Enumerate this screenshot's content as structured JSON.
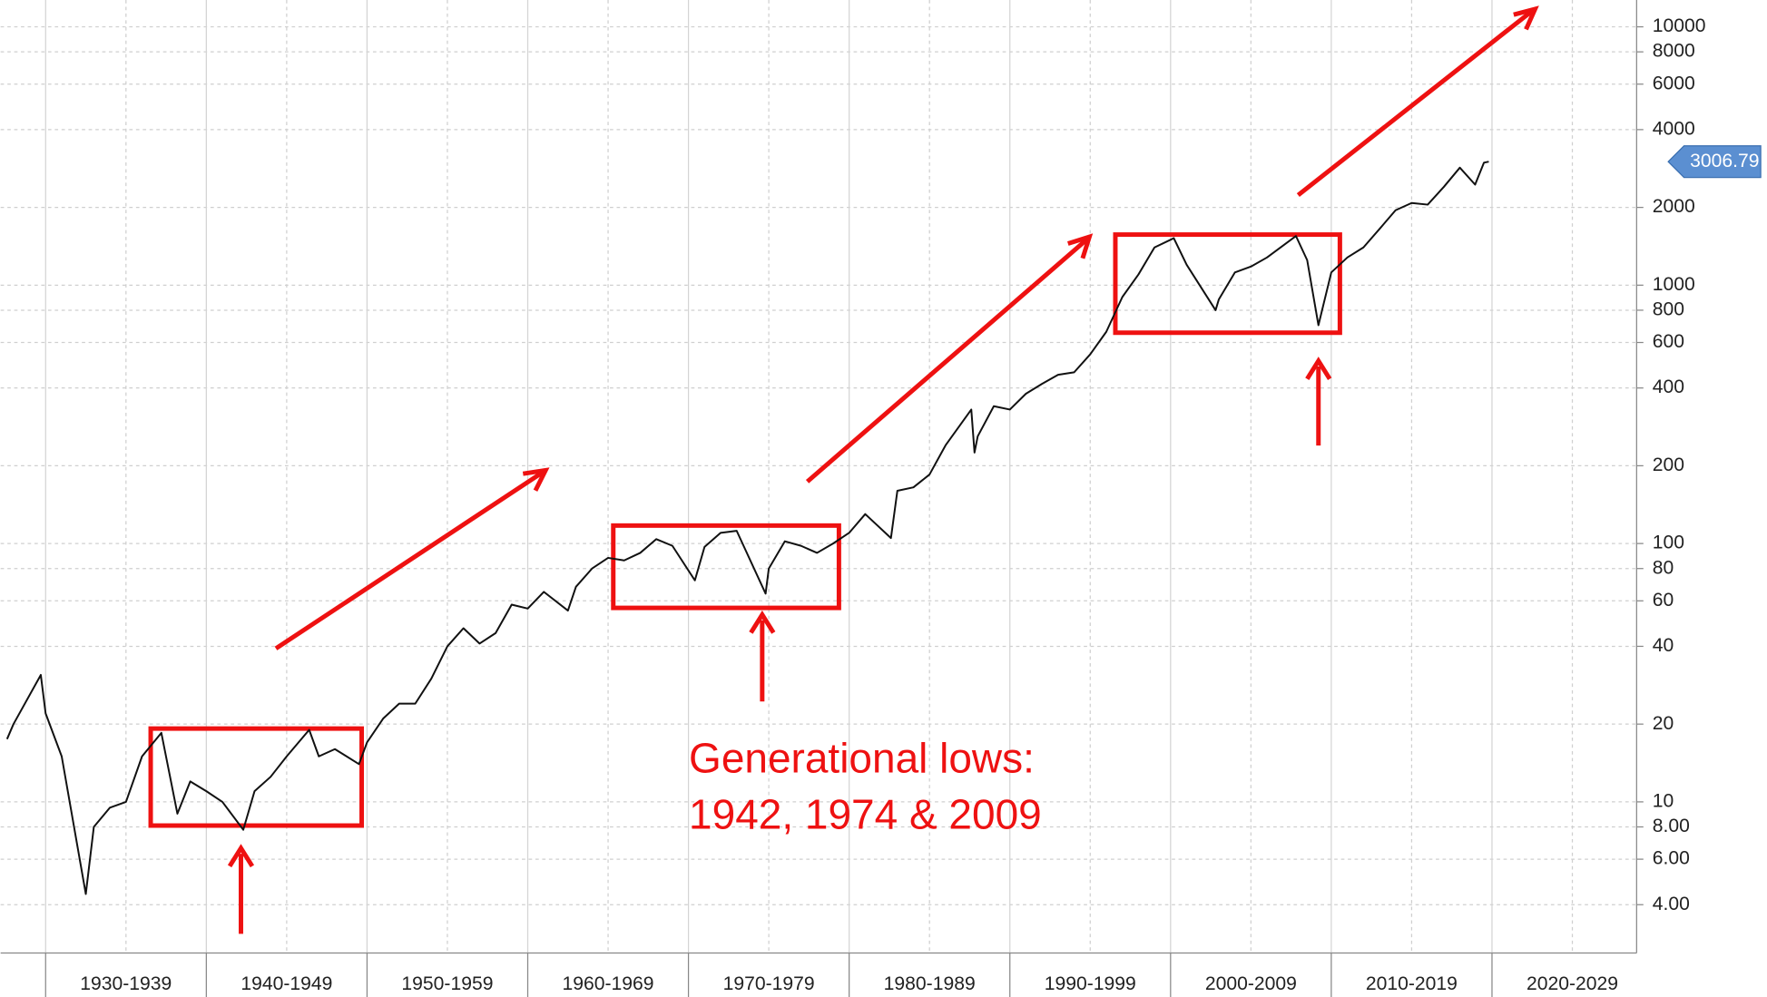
{
  "chart_data": {
    "type": "line",
    "log_y": true,
    "grid": true,
    "color": "#111111",
    "x": [
      1927.6,
      1928,
      1929.7,
      1930,
      1931,
      1932.5,
      1933,
      1934,
      1935,
      1936,
      1937.2,
      1938.2,
      1939,
      1940,
      1941,
      1942.3,
      1943,
      1944,
      1945,
      1946.4,
      1947,
      1948,
      1949.5,
      1950,
      1951,
      1952,
      1953,
      1954,
      1955,
      1956,
      1957,
      1958,
      1959,
      1960,
      1961,
      1962.5,
      1963,
      1964,
      1965,
      1966,
      1967,
      1968,
      1969,
      1970.4,
      1971,
      1972,
      1973,
      1974.8,
      1975,
      1976,
      1977,
      1978,
      1979,
      1980,
      1981,
      1982.6,
      1983,
      1984,
      1985,
      1986,
      1987.6,
      1987.8,
      1988,
      1989,
      1990,
      1991,
      1992,
      1993,
      1994,
      1995,
      1996,
      1997,
      1998,
      1999,
      2000.2,
      2001,
      2002.8,
      2003,
      2004,
      2005,
      2006,
      2007.8,
      2008.5,
      2009.2,
      2010,
      2011,
      2012,
      2013,
      2014,
      2015,
      2016,
      2017,
      2018,
      2018.95,
      2019.5,
      2019.8
    ],
    "values": [
      17.5,
      20,
      31,
      22,
      15,
      4.4,
      8,
      9.5,
      10,
      15,
      18.5,
      9,
      12,
      11,
      10,
      7.8,
      11,
      12.5,
      15,
      19,
      15,
      16,
      14,
      17,
      21,
      24,
      24,
      30,
      40,
      47,
      41,
      45,
      58,
      56,
      65,
      55,
      68,
      80,
      88,
      86,
      92,
      104,
      98,
      72,
      97,
      110,
      112,
      64,
      80,
      102,
      98,
      92,
      100,
      110,
      130,
      105,
      160,
      165,
      185,
      240,
      330,
      225,
      260,
      340,
      330,
      380,
      415,
      450,
      460,
      540,
      660,
      900,
      1100,
      1400,
      1520,
      1200,
      800,
      880,
      1120,
      1180,
      1280,
      1550,
      1250,
      700,
      1120,
      1280,
      1400,
      1650,
      1950,
      2080,
      2050,
      2400,
      2850,
      2450,
      2980,
      3006.79
    ],
    "current_value": 3006.79,
    "xlim": [
      1927.2,
      2029
    ],
    "xgrid": [
      1930,
      1940,
      1950,
      1960,
      1970,
      1980,
      1990,
      2000,
      2010,
      2020
    ],
    "xticks": [
      {
        "value": 1935,
        "label": "1930-1939"
      },
      {
        "value": 1945,
        "label": "1940-1949"
      },
      {
        "value": 1955,
        "label": "1950-1959"
      },
      {
        "value": 1965,
        "label": "1960-1969"
      },
      {
        "value": 1975,
        "label": "1970-1979"
      },
      {
        "value": 1985,
        "label": "1980-1989"
      },
      {
        "value": 1995,
        "label": "1990-1999"
      },
      {
        "value": 2005,
        "label": "2000-2009"
      },
      {
        "value": 2015,
        "label": "2010-2019"
      },
      {
        "value": 2025,
        "label": "2020-2029"
      }
    ],
    "ylim": [
      2.6,
      12700
    ],
    "yticks": [
      {
        "value": 4,
        "label": "4.00"
      },
      {
        "value": 6,
        "label": "6.00"
      },
      {
        "value": 8,
        "label": "8.00"
      },
      10,
      20,
      40,
      60,
      80,
      100,
      200,
      400,
      600,
      800,
      1000,
      2000,
      4000,
      6000,
      8000,
      10000
    ],
    "annotation": [
      "Generational lows:",
      "1942, 1974 & 2009"
    ]
  }
}
